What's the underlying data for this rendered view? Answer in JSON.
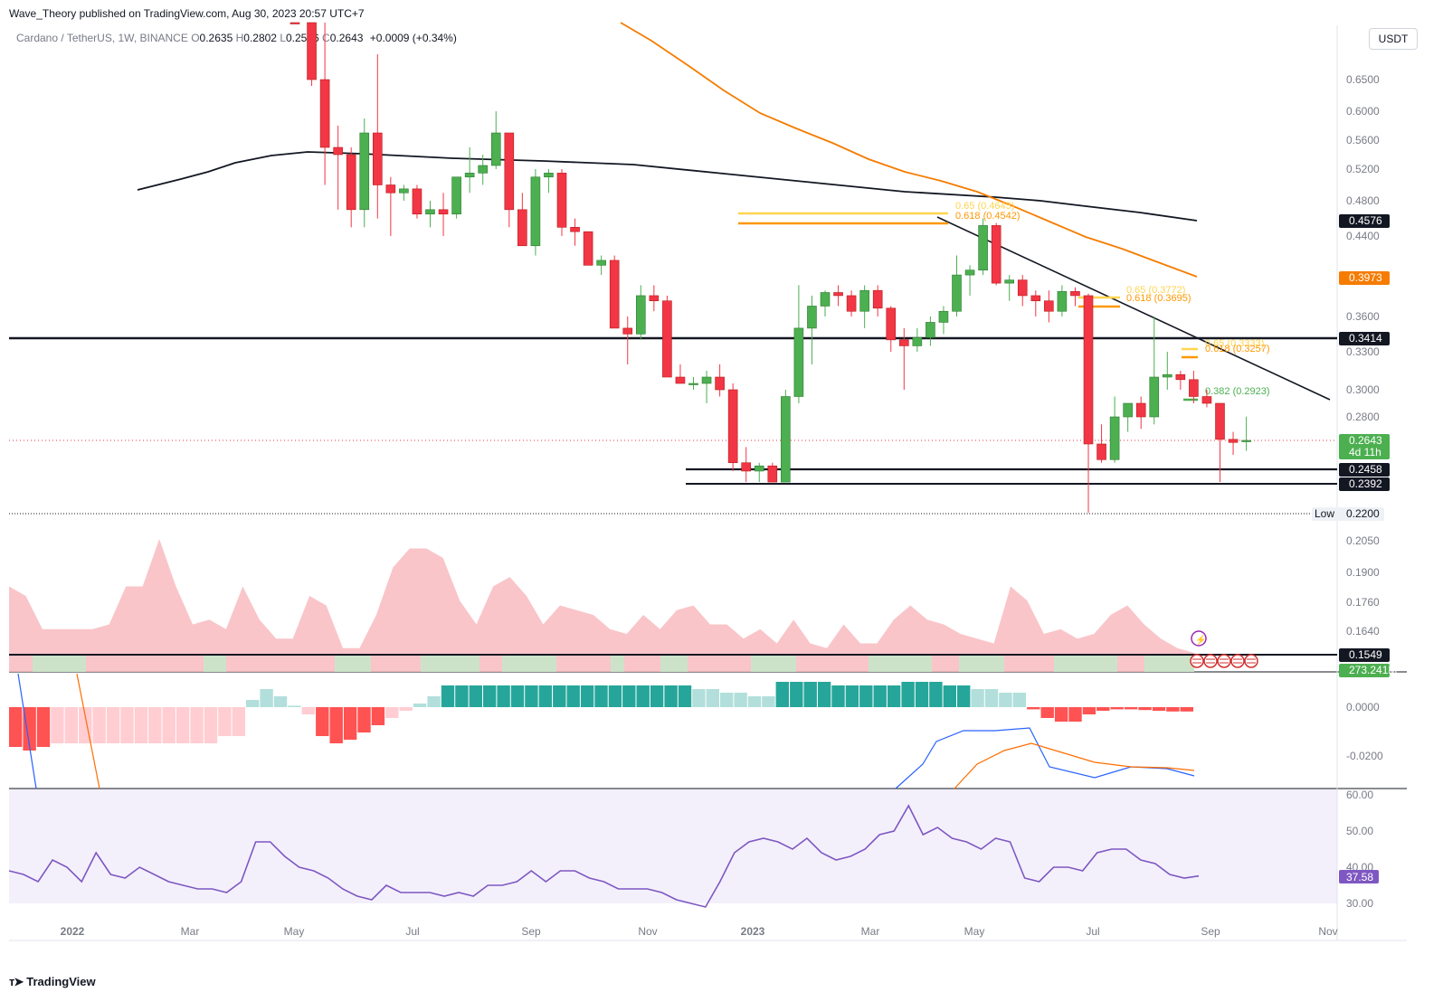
{
  "header": {
    "published": "Wave_Theory published on TradingView.com, Aug 30, 2023 20:57 UTC+7",
    "symbol": "Cardano / TetherUS, 1W, BINANCE",
    "o_label": "O",
    "o_value": "0.2635",
    "h_label": "H",
    "h_value": "0.2802",
    "l_label": "L",
    "l_value": "0.2576",
    "c_label": "C",
    "c_value": "0.2643",
    "change": "+0.0009 (+0.34%)",
    "currency": "USDT"
  },
  "footer": {
    "brand": "TradingView",
    "logo": "tradingview-logo-icon"
  },
  "colors": {
    "up": "#26a69a",
    "candle_up": "#4caf50",
    "down": "#f23645",
    "ema_orange": "#f57c00",
    "ma_black": "#131722",
    "fib_yellow": "#ffd54f",
    "fib_orange": "#ff9800",
    "fib_green": "#4caf50",
    "rsi": "#7e57c2",
    "macd": "#2962ff",
    "signal": "#ff6d00"
  },
  "chart_data": [
    {
      "type": "candlestick",
      "title": "Cardano / TetherUS, 1W, BINANCE",
      "x_ticks": [
        "2022",
        "Mar",
        "May",
        "Jul",
        "Sep",
        "Nov",
        "2023",
        "Mar",
        "May",
        "Jul",
        "Sep",
        "Nov"
      ],
      "y_ticks": [
        "0.6500",
        "0.6000",
        "0.5600",
        "0.5200",
        "0.4800",
        "0.4400",
        "0.3600",
        "0.3300",
        "0.3000",
        "0.2800",
        "0.2050",
        "0.1900",
        "0.1760",
        "0.1640"
      ],
      "ohlc": [
        [
          1.4,
          1.42,
          1.12,
          1.15
        ],
        [
          0.86,
          0.87,
          0.64,
          0.65
        ],
        [
          0.65,
          0.78,
          0.5,
          0.55
        ],
        [
          0.55,
          0.58,
          0.47,
          0.54
        ],
        [
          0.54,
          0.55,
          0.45,
          0.47
        ],
        [
          0.47,
          0.59,
          0.45,
          0.57
        ],
        [
          0.57,
          0.69,
          0.46,
          0.5
        ],
        [
          0.5,
          0.51,
          0.44,
          0.49
        ],
        [
          0.49,
          0.5,
          0.48,
          0.495
        ],
        [
          0.495,
          0.5,
          0.46,
          0.465
        ],
        [
          0.465,
          0.48,
          0.45,
          0.47
        ],
        [
          0.47,
          0.49,
          0.44,
          0.465
        ],
        [
          0.465,
          0.51,
          0.46,
          0.51
        ],
        [
          0.51,
          0.55,
          0.49,
          0.515
        ],
        [
          0.515,
          0.54,
          0.5,
          0.525
        ],
        [
          0.525,
          0.6,
          0.52,
          0.57
        ],
        [
          0.57,
          0.57,
          0.45,
          0.47
        ],
        [
          0.47,
          0.49,
          0.43,
          0.43
        ],
        [
          0.43,
          0.52,
          0.42,
          0.51
        ],
        [
          0.51,
          0.52,
          0.49,
          0.515
        ],
        [
          0.515,
          0.52,
          0.44,
          0.45
        ],
        [
          0.45,
          0.46,
          0.43,
          0.445
        ],
        [
          0.445,
          0.445,
          0.41,
          0.41
        ],
        [
          0.41,
          0.42,
          0.4,
          0.415
        ],
        [
          0.415,
          0.42,
          0.35,
          0.35
        ],
        [
          0.35,
          0.36,
          0.32,
          0.345
        ],
        [
          0.345,
          0.39,
          0.34,
          0.38
        ],
        [
          0.38,
          0.39,
          0.365,
          0.375
        ],
        [
          0.375,
          0.38,
          0.31,
          0.31
        ],
        [
          0.31,
          0.32,
          0.305,
          0.305
        ],
        [
          0.305,
          0.31,
          0.3,
          0.305
        ],
        [
          0.305,
          0.315,
          0.29,
          0.31
        ],
        [
          0.31,
          0.32,
          0.295,
          0.3
        ],
        [
          0.3,
          0.305,
          0.245,
          0.25
        ],
        [
          0.25,
          0.26,
          0.24,
          0.245
        ],
        [
          0.245,
          0.25,
          0.24,
          0.248
        ],
        [
          0.248,
          0.25,
          0.24,
          0.24
        ],
        [
          0.24,
          0.3,
          0.24,
          0.295
        ],
        [
          0.295,
          0.39,
          0.29,
          0.35
        ],
        [
          0.35,
          0.38,
          0.32,
          0.37
        ],
        [
          0.37,
          0.385,
          0.36,
          0.383
        ],
        [
          0.383,
          0.39,
          0.37,
          0.38
        ],
        [
          0.38,
          0.385,
          0.36,
          0.365
        ],
        [
          0.365,
          0.39,
          0.35,
          0.385
        ],
        [
          0.385,
          0.39,
          0.36,
          0.368
        ],
        [
          0.368,
          0.37,
          0.33,
          0.34
        ],
        [
          0.34,
          0.35,
          0.3,
          0.335
        ],
        [
          0.335,
          0.35,
          0.33,
          0.342
        ],
        [
          0.342,
          0.36,
          0.335,
          0.355
        ],
        [
          0.355,
          0.37,
          0.345,
          0.365
        ],
        [
          0.365,
          0.42,
          0.36,
          0.4
        ],
        [
          0.4,
          0.41,
          0.38,
          0.405
        ],
        [
          0.405,
          0.46,
          0.4,
          0.452
        ],
        [
          0.452,
          0.455,
          0.39,
          0.392
        ],
        [
          0.392,
          0.4,
          0.375,
          0.395
        ],
        [
          0.395,
          0.4,
          0.37,
          0.38
        ],
        [
          0.38,
          0.385,
          0.36,
          0.375
        ],
        [
          0.375,
          0.385,
          0.355,
          0.365
        ],
        [
          0.365,
          0.39,
          0.36,
          0.384
        ],
        [
          0.384,
          0.388,
          0.37,
          0.38
        ],
        [
          0.38,
          0.382,
          0.22,
          0.262
        ],
        [
          0.262,
          0.275,
          0.25,
          0.252
        ],
        [
          0.252,
          0.295,
          0.25,
          0.28
        ],
        [
          0.28,
          0.29,
          0.27,
          0.29
        ],
        [
          0.29,
          0.295,
          0.272,
          0.28
        ],
        [
          0.28,
          0.36,
          0.275,
          0.31
        ],
        [
          0.31,
          0.33,
          0.3,
          0.312
        ],
        [
          0.312,
          0.315,
          0.3,
          0.308
        ],
        [
          0.308,
          0.315,
          0.29,
          0.295
        ],
        [
          0.295,
          0.3,
          0.287,
          0.29
        ],
        [
          0.29,
          0.29,
          0.24,
          0.265
        ],
        [
          0.265,
          0.27,
          0.255,
          0.263
        ],
        [
          0.2635,
          0.2802,
          0.2576,
          0.2643
        ]
      ],
      "moving_averages": [
        {
          "name": "MA",
          "color": "black",
          "values": [
            0.49,
            0.495,
            0.5,
            0.505,
            0.515,
            0.525,
            0.53,
            0.535,
            0.535,
            0.535,
            0.53,
            0.53,
            0.53,
            0.528,
            0.526,
            0.524,
            0.52,
            0.518,
            0.515,
            0.512,
            0.508,
            0.504,
            0.5,
            0.495,
            0.488,
            0.482,
            0.475,
            0.468,
            0.46
          ]
        },
        {
          "name": "EMA",
          "color": "orange",
          "values": [
            0.88,
            0.8,
            0.72,
            0.65,
            0.6,
            0.565,
            0.535,
            0.51,
            0.48,
            0.455,
            0.43,
            0.4
          ]
        }
      ],
      "fibonacci": [
        {
          "label": "0.65 (0.4645)",
          "level": 0.4645,
          "color": "yellow"
        },
        {
          "label": "0.618 (0.4542)",
          "level": 0.4542,
          "color": "orange"
        },
        {
          "label": "0.65 (0.3772)",
          "level": 0.3772,
          "color": "yellow"
        },
        {
          "label": "0.618 (0.3695)",
          "level": 0.3695,
          "color": "orange"
        },
        {
          "label": "0.65 (0.3333)",
          "level": 0.3333,
          "color": "yellow"
        },
        {
          "label": "0.618 (0.3257)",
          "level": 0.3257,
          "color": "orange"
        },
        {
          "label": "0.382 (0.2923)",
          "level": 0.2923,
          "color": "green"
        }
      ],
      "horizontal_levels": [
        0.3414,
        0.2458,
        0.2392,
        0.22,
        0.1549
      ],
      "price_tags": [
        {
          "text": "0.4576",
          "bg": "#131722"
        },
        {
          "text": "0.3973",
          "bg": "#f57c00"
        },
        {
          "text": "0.3414",
          "bg": "#131722"
        },
        {
          "text": "0.2643",
          "sub": "4d 11h",
          "bg": "#4caf50"
        },
        {
          "text": "0.2458",
          "bg": "#131722"
        },
        {
          "text": "0.2392",
          "bg": "#131722"
        },
        {
          "text": "0.2200",
          "prefix": "Low",
          "bg": "#eef1f5"
        },
        {
          "text": "0.1549",
          "bg": "#131722"
        },
        {
          "text": "273.241M",
          "bg": "#4caf50"
        }
      ],
      "volume": [
        0.9,
        0.8,
        0.45,
        0.45,
        0.45,
        0.45,
        0.5,
        0.9,
        0.9,
        1.4,
        0.9,
        0.5,
        0.55,
        0.45,
        0.9,
        0.55,
        0.35,
        0.35,
        0.8,
        0.7,
        0.25,
        0.25,
        0.6,
        1.1,
        1.3,
        1.3,
        1.2,
        0.75,
        0.5,
        0.9,
        1.0,
        0.8,
        0.5,
        0.7,
        0.65,
        0.6,
        0.45,
        0.4,
        0.6,
        0.45,
        0.65,
        0.7,
        0.5,
        0.5,
        0.35,
        0.45,
        0.3,
        0.55,
        0.3,
        0.25,
        0.5,
        0.3,
        0.3,
        0.55,
        0.7,
        0.55,
        0.5,
        0.4,
        0.35,
        0.3,
        0.9,
        0.75,
        0.4,
        0.45,
        0.35,
        0.4,
        0.6,
        0.7,
        0.5,
        0.35,
        0.25,
        0.2
      ],
      "macd_histogram": [
        -0.55,
        -0.6,
        -0.55,
        -0.5,
        -0.5,
        -0.5,
        -0.5,
        -0.5,
        -0.5,
        -0.5,
        -0.5,
        -0.5,
        -0.5,
        -0.5,
        -0.5,
        -0.4,
        -0.4,
        0.1,
        0.25,
        0.15,
        0.02,
        -0.1,
        -0.4,
        -0.5,
        -0.45,
        -0.35,
        -0.25,
        -0.15,
        -0.05,
        0.05,
        0.15,
        0.3,
        0.3,
        0.3,
        0.3,
        0.3,
        0.3,
        0.3,
        0.3,
        0.3,
        0.3,
        0.3,
        0.3,
        0.3,
        0.3,
        0.3,
        0.3,
        0.3,
        0.3,
        0.25,
        0.25,
        0.2,
        0.2,
        0.15,
        0.15,
        0.35,
        0.35,
        0.35,
        0.35,
        0.3,
        0.3,
        0.3,
        0.3,
        0.3,
        0.35,
        0.35,
        0.35,
        0.3,
        0.3,
        0.25,
        0.25,
        0.2,
        0.2,
        -0.03,
        -0.15,
        -0.2,
        -0.2,
        -0.1,
        -0.05,
        -0.03,
        -0.03,
        -0.04,
        -0.05,
        -0.06,
        -0.06
      ],
      "macd_axis": [
        "0.0000",
        "-0.0200"
      ],
      "rsi_axis": [
        "60.00",
        "50.00",
        "40.00",
        "30.00"
      ],
      "rsi_value": "37.58",
      "rsi": [
        39,
        38,
        36,
        42,
        40,
        36,
        44,
        38,
        37,
        40,
        38,
        36,
        35,
        34,
        34,
        33,
        36,
        47,
        47,
        43,
        40,
        39,
        37,
        34,
        32,
        31,
        35,
        33,
        33,
        33,
        32,
        33,
        32,
        35,
        35,
        36,
        39,
        36,
        39,
        39,
        37,
        36,
        34,
        34,
        34,
        33,
        31,
        30,
        29,
        36,
        44,
        47,
        48,
        47,
        45,
        48,
        44,
        42,
        43,
        45,
        49,
        50,
        57,
        49,
        51,
        48,
        47,
        45,
        48,
        47,
        37,
        36,
        40,
        40,
        39,
        44,
        45,
        45,
        42,
        41,
        38,
        37,
        37.58
      ]
    }
  ]
}
